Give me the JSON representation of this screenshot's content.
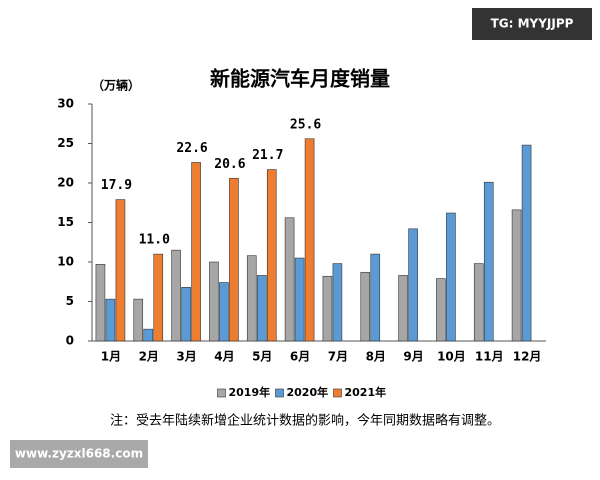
{
  "chart_data": {
    "type": "bar",
    "title": "新能源汽车月度销量",
    "y_label": "（万辆）",
    "note": "注：受去年陆续新增企业统计数据的影响，今年同期数据略有调整。",
    "watermarks": [
      "TG: MYYJJPP",
      "www.zyzxl668.com"
    ],
    "categories": [
      "1月",
      "2月",
      "3月",
      "4月",
      "5月",
      "6月",
      "7月",
      "8月",
      "9月",
      "10月",
      "11月",
      "12月"
    ],
    "series": [
      {
        "name": "2019年",
        "color": "#a6a6a6",
        "values": [
          9.7,
          5.3,
          11.5,
          10,
          10.8,
          15.6,
          8.2,
          8.7,
          8.3,
          7.9,
          9.8,
          16.6
        ]
      },
      {
        "name": "2020年",
        "color": "#5b9bd5",
        "values": [
          5.3,
          1.5,
          6.8,
          7.4,
          8.3,
          10.5,
          9.8,
          11,
          14.2,
          16.2,
          20.1,
          24.8
        ]
      },
      {
        "name": "2021年",
        "color": "#ed7d31",
        "values": [
          17.9,
          11.0,
          22.6,
          20.6,
          21.7,
          25.6,
          null,
          null,
          null,
          null,
          null,
          null
        ],
        "value_labels": [
          "17.9",
          "11.0",
          "22.6",
          "20.6",
          "21.7",
          "25.6",
          null,
          null,
          null,
          null,
          null,
          null
        ]
      }
    ],
    "ylim": [
      0,
      30
    ],
    "yticks": [
      0,
      5,
      10,
      15,
      20,
      25,
      30
    ],
    "grid": false,
    "legend": "bottom"
  }
}
